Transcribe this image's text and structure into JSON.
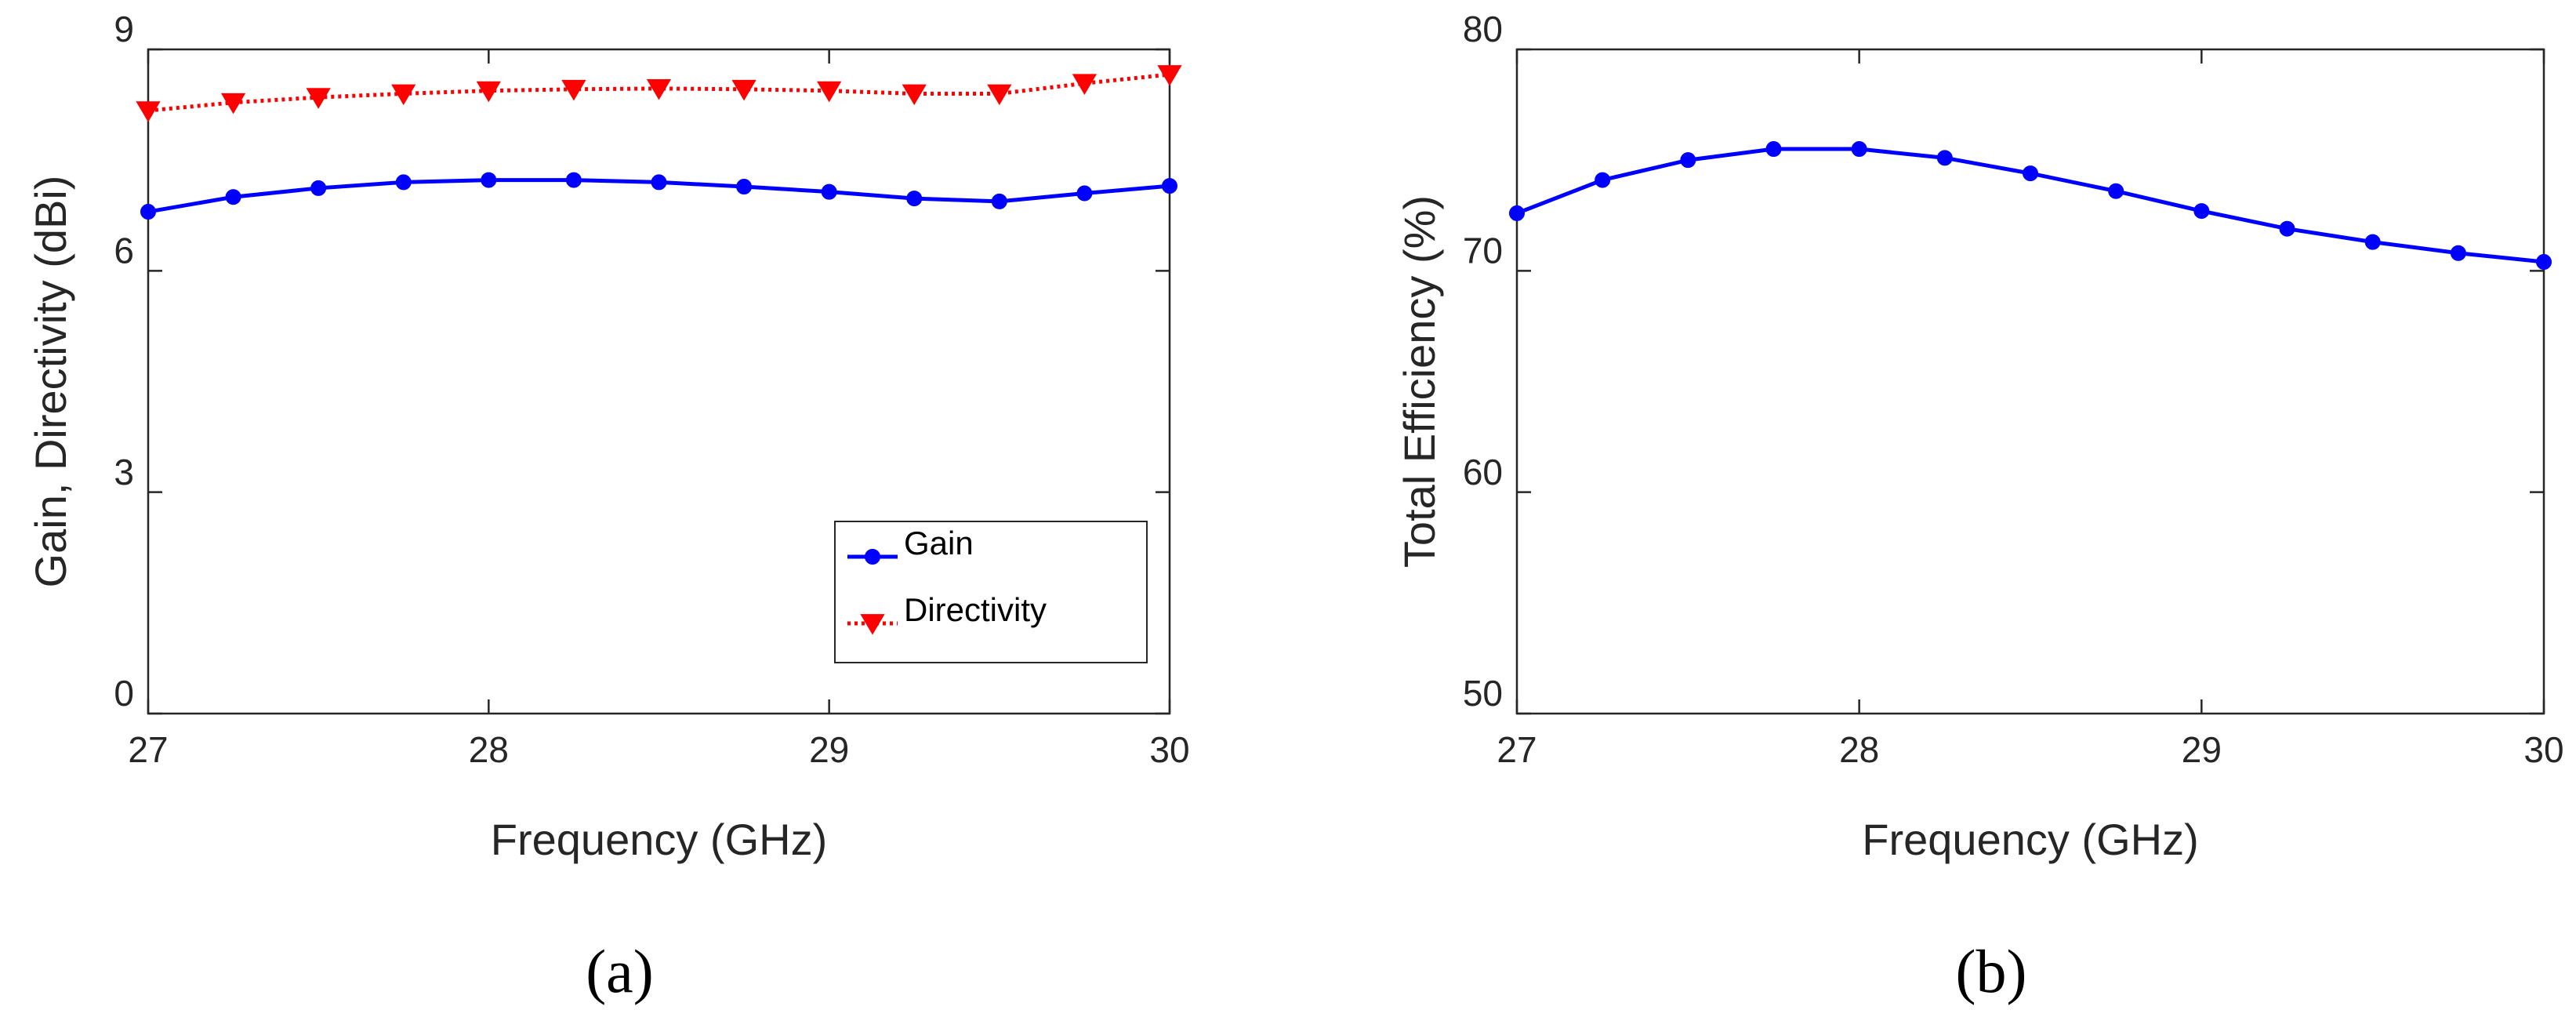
{
  "chart_data": [
    {
      "type": "line",
      "title": "(a)",
      "xlabel": "Frequency (GHz)",
      "ylabel": "Gain, Directivity (dBi)",
      "x": [
        27,
        27.25,
        27.5,
        27.75,
        28,
        28.25,
        28.5,
        28.75,
        29,
        29.25,
        29.5,
        29.75,
        30
      ],
      "xlim": [
        27,
        30
      ],
      "xticks": [
        27,
        28,
        29,
        30
      ],
      "ylim": [
        0,
        9
      ],
      "yticks": [
        0,
        3,
        6,
        9
      ],
      "legend": "lower right",
      "series": [
        {
          "name": "Gain",
          "color": "#0000ff",
          "marker": "circle",
          "linestyle": "solid",
          "values": [
            6.8,
            7.0,
            7.12,
            7.2,
            7.23,
            7.23,
            7.2,
            7.14,
            7.07,
            6.98,
            6.94,
            7.05,
            7.15
          ]
        },
        {
          "name": "Directivity",
          "color": "#ff0000",
          "marker": "triangle-down",
          "linestyle": "dotted",
          "values": [
            8.17,
            8.28,
            8.35,
            8.4,
            8.44,
            8.46,
            8.47,
            8.46,
            8.44,
            8.4,
            8.4,
            8.54,
            8.66
          ]
        }
      ]
    },
    {
      "type": "line",
      "title": "(b)",
      "xlabel": "Frequency (GHz)",
      "ylabel": "Total Efficiency (%)",
      "x": [
        27,
        27.25,
        27.5,
        27.75,
        28,
        28.25,
        28.5,
        28.75,
        29,
        29.25,
        29.5,
        29.75,
        30
      ],
      "xlim": [
        27,
        30
      ],
      "xticks": [
        27,
        28,
        29,
        30
      ],
      "ylim": [
        50,
        80
      ],
      "yticks": [
        50,
        60,
        70,
        80
      ],
      "series": [
        {
          "color": "#0000ff",
          "marker": "circle",
          "linestyle": "solid",
          "values": [
            72.6,
            74.1,
            75.0,
            75.5,
            75.5,
            75.1,
            74.4,
            73.6,
            72.7,
            71.9,
            71.3,
            70.8,
            70.4
          ]
        }
      ]
    }
  ]
}
